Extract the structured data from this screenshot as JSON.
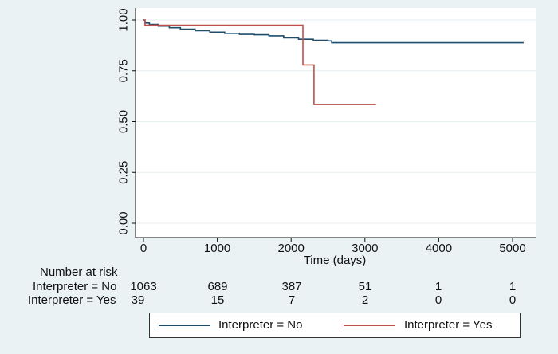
{
  "chart_data": {
    "type": "line",
    "title": "",
    "xlabel": "Time (days)",
    "ylabel": "",
    "xlim": [
      0,
      5200
    ],
    "ylim": [
      0,
      1
    ],
    "x_ticks": [
      0,
      1000,
      2000,
      3000,
      4000,
      5000
    ],
    "x_tick_labels": [
      "0",
      "1000",
      "2000",
      "3000",
      "4000",
      "5000"
    ],
    "y_ticks": [
      0,
      0.25,
      0.5,
      0.75,
      1
    ],
    "y_tick_labels": [
      "0.00",
      "0.25",
      "0.50",
      "0.75",
      "1.00"
    ],
    "grid": "horizontal",
    "step": true,
    "series": [
      {
        "name": "Interpreter = No",
        "color": "#1f4e6b",
        "points": [
          [
            0,
            1.0
          ],
          [
            20,
            0.985
          ],
          [
            80,
            0.978
          ],
          [
            200,
            0.97
          ],
          [
            350,
            0.962
          ],
          [
            500,
            0.955
          ],
          [
            700,
            0.947
          ],
          [
            900,
            0.94
          ],
          [
            1100,
            0.934
          ],
          [
            1300,
            0.929
          ],
          [
            1500,
            0.927
          ],
          [
            1700,
            0.922
          ],
          [
            1900,
            0.912
          ],
          [
            2100,
            0.905
          ],
          [
            2300,
            0.9
          ],
          [
            2500,
            0.897
          ],
          [
            2550,
            0.888
          ],
          [
            5150,
            0.888
          ]
        ]
      },
      {
        "name": "Interpreter = Yes",
        "color": "#c0504d",
        "points": [
          [
            0,
            1.0
          ],
          [
            20,
            0.974
          ],
          [
            2160,
            0.974
          ],
          [
            2160,
            0.779
          ],
          [
            2310,
            0.779
          ],
          [
            2310,
            0.584
          ],
          [
            3150,
            0.584
          ]
        ]
      }
    ]
  },
  "risk_table": {
    "title": "Number at risk",
    "time_points": [
      0,
      1000,
      2000,
      3000,
      4000,
      5000
    ],
    "rows": [
      {
        "label": "Interpreter = No",
        "values": [
          "1063",
          "689",
          "387",
          "51",
          "1",
          "1"
        ]
      },
      {
        "label": "Interpreter = Yes",
        "values": [
          "39",
          "15",
          "7",
          "2",
          "0",
          "0"
        ]
      }
    ]
  },
  "legend": {
    "items": [
      {
        "label": "Interpreter = No",
        "color": "#1f4e6b"
      },
      {
        "label": "Interpreter = Yes",
        "color": "#c0504d"
      }
    ]
  }
}
